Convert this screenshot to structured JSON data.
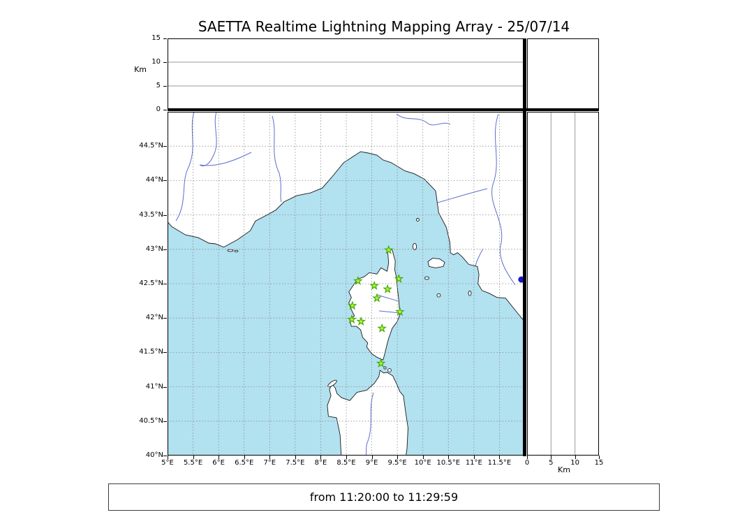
{
  "title": "SAETTA Realtime Lightning Mapping Array - 25/07/14",
  "status": {
    "text": "from 11:20:00 to 11:29:59"
  },
  "axes": {
    "km_label": "Km"
  },
  "chart_data": {
    "type": "scatter",
    "title": "SAETTA Realtime Lightning Mapping Array - 25/07/14",
    "time_window": "from 11:20:00 to 11:29:59",
    "map_panel": {
      "xlim": [
        5,
        12
      ],
      "ylim": [
        40,
        45
      ],
      "grid": "dashed every 0.5 degree",
      "x_ticks": [
        {
          "label": "5°E",
          "lon": 5
        },
        {
          "label": "5.5°E",
          "lon": 5.5
        },
        {
          "label": "6°E",
          "lon": 6
        },
        {
          "label": "6.5°E",
          "lon": 6.5
        },
        {
          "label": "7°E",
          "lon": 7
        },
        {
          "label": "7.5°E",
          "lon": 7.5
        },
        {
          "label": "8°E",
          "lon": 8
        },
        {
          "label": "8.5°E",
          "lon": 8.5
        },
        {
          "label": "9°E",
          "lon": 9
        },
        {
          "label": "9.5°E",
          "lon": 9.5
        },
        {
          "label": "10°E",
          "lon": 10
        },
        {
          "label": "10.5°E",
          "lon": 10.5
        },
        {
          "label": "11°E",
          "lon": 11
        },
        {
          "label": "11.5°E",
          "lon": 11.5
        }
      ],
      "y_ticks": [
        {
          "label": "40°N",
          "lat": 40
        },
        {
          "label": "40.5°N",
          "lat": 40.5
        },
        {
          "label": "41°N",
          "lat": 41
        },
        {
          "label": "41.5°N",
          "lat": 41.5
        },
        {
          "label": "42°N",
          "lat": 42
        },
        {
          "label": "42.5°N",
          "lat": 42.5
        },
        {
          "label": "43°N",
          "lat": 43
        },
        {
          "label": "43.5°N",
          "lat": 43.5
        },
        {
          "label": "44°N",
          "lat": 44
        },
        {
          "label": "44.5°N",
          "lat": 44.5
        }
      ]
    },
    "altitude_panels": {
      "label": "Km",
      "range_km": [
        0,
        15
      ],
      "grid_km": [
        5,
        10
      ],
      "ticks": [
        {
          "label": "0",
          "km": 0
        },
        {
          "label": "5",
          "km": 5
        },
        {
          "label": "10",
          "km": 10
        },
        {
          "label": "15",
          "km": 15
        }
      ]
    },
    "stations": [
      {
        "lon": 9.33,
        "lat": 42.99
      },
      {
        "lon": 8.73,
        "lat": 42.54
      },
      {
        "lon": 9.05,
        "lat": 42.47
      },
      {
        "lon": 9.53,
        "lat": 42.57
      },
      {
        "lon": 9.31,
        "lat": 42.42
      },
      {
        "lon": 9.1,
        "lat": 42.29
      },
      {
        "lon": 8.62,
        "lat": 42.18
      },
      {
        "lon": 9.55,
        "lat": 42.09
      },
      {
        "lon": 8.61,
        "lat": 41.98
      },
      {
        "lon": 8.79,
        "lat": 41.95
      },
      {
        "lon": 9.2,
        "lat": 41.85
      },
      {
        "lon": 9.18,
        "lat": 41.34
      }
    ],
    "sources": [
      {
        "lon": 11.93,
        "lat": 42.56
      }
    ],
    "colors": {
      "sea": "#b2e1f0",
      "land": "#ffffff",
      "coast": "#1a1a1a",
      "grid": "#8a8a8a",
      "river": "#5b6ed0",
      "station": "#baee3c",
      "station_edge": "#3aa800",
      "source": "#1717c9"
    }
  }
}
